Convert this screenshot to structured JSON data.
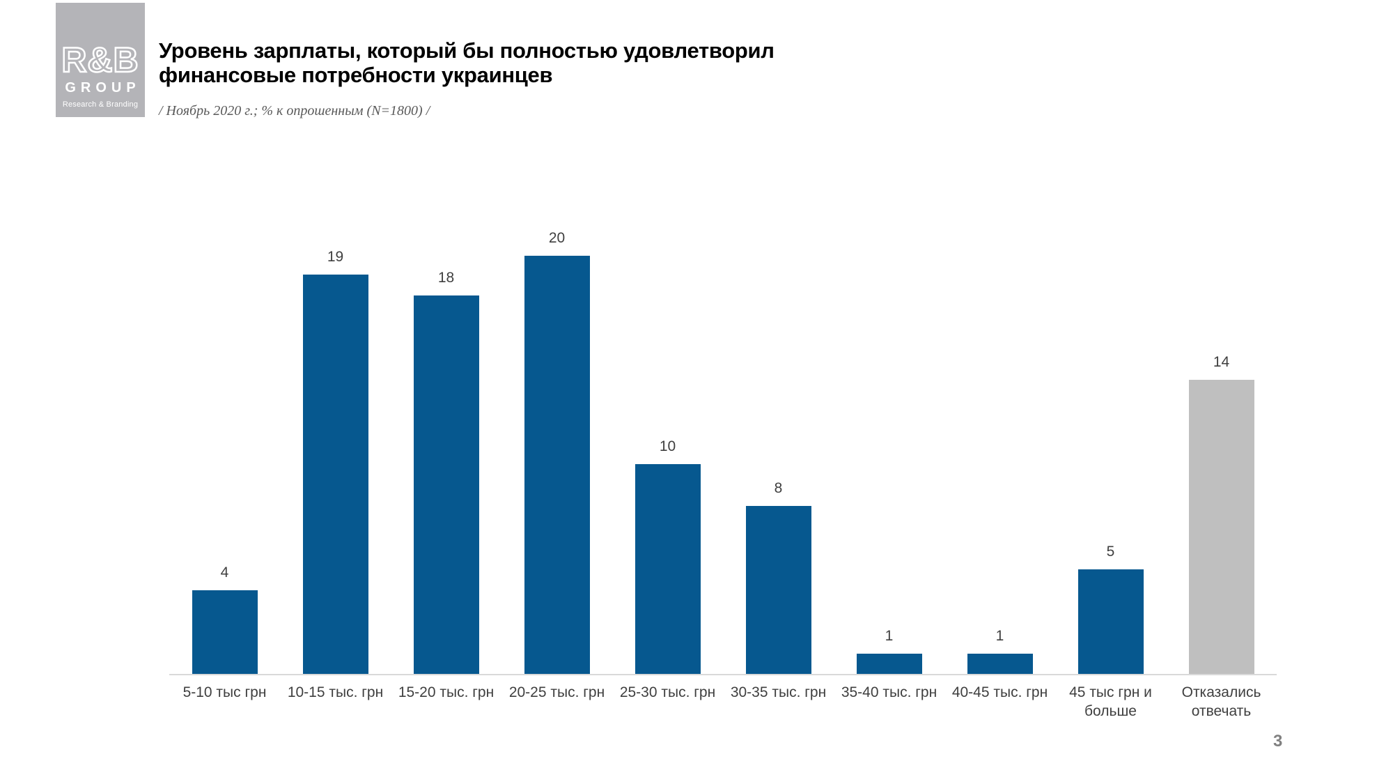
{
  "header": {
    "logo": {
      "line1": "R&B",
      "line2": "GROUP",
      "line3": "Research & Branding"
    },
    "title_line1": "Уровень зарплаты, который бы полностью удовлетворил",
    "title_line2": "финансовые потребности украинцев",
    "subtitle": "/ Ноябрь 2020 г.; % к опрошенным (N=1800) /"
  },
  "chart_data": {
    "type": "bar",
    "title": "Уровень зарплаты, который бы полностью удовлетворил финансовые потребности украинцев",
    "subtitle": "/ Ноябрь 2020 г.; % к опрошенным (N=1800) /",
    "categories": [
      "5-10 тыс грн",
      "10-15 тыс. грн",
      "15-20 тыс. грн",
      "20-25 тыс. грн",
      "25-30 тыс. грн",
      "30-35 тыс. грн",
      "35-40 тыс. грн",
      "40-45 тыс. грн",
      "45 тыс грн и больше",
      "Отказались отвечать"
    ],
    "values": [
      4,
      19,
      18,
      20,
      10,
      8,
      1,
      1,
      5,
      14
    ],
    "data_labels": [
      "4",
      "19",
      "18",
      "20",
      "10",
      "8",
      "1",
      "1",
      "5",
      "14"
    ],
    "color_keys": [
      "default",
      "default",
      "default",
      "default",
      "default",
      "default",
      "default",
      "default",
      "default",
      "refused"
    ],
    "colors": {
      "default": "#06588f",
      "refused": "#bfbfbf",
      "axis_line": "#d9d9d9",
      "label_text": "#3f3f3f"
    },
    "xlabel": "",
    "ylabel": "",
    "ylim": [
      0,
      20
    ],
    "grid": false,
    "legend": "none"
  },
  "footer": {
    "page_number": "3"
  }
}
